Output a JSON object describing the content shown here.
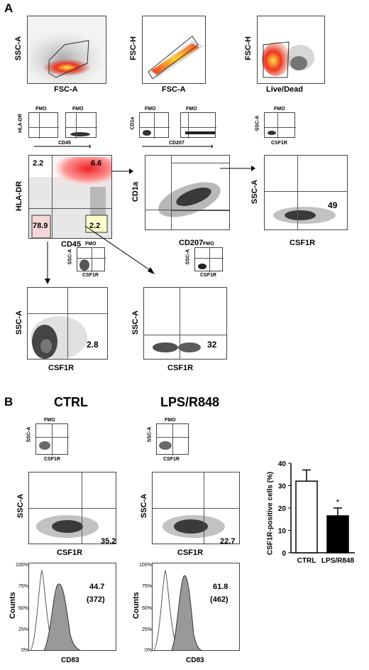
{
  "panel_a": {
    "letter": "A",
    "row1": [
      {
        "x_label": "FSC-A",
        "y_label": "SSC-A"
      },
      {
        "x_label": "FSC-A",
        "y_label": "FSC-H"
      },
      {
        "x_label": "Live/Dead",
        "y_label": "FSC-H"
      }
    ],
    "fmo_label": "FMO",
    "fmo_hla": {
      "y_label": "HLA-DR",
      "x_label": "CD45"
    },
    "fmo_cd1a": {
      "y_label": "CD1a",
      "x_label": "CD207"
    },
    "fmo_ssc": {
      "y_label": "SSC-A",
      "x_label": "CSF1R"
    },
    "hla_plot": {
      "y_label": "HLA-DR",
      "x_label": "CD45",
      "q_tl": "2.2",
      "q_tr": "6.6",
      "q_bl": "78.9",
      "q_br": "2.2"
    },
    "cd1a_plot": {
      "y_label": "CD1a",
      "x_label": "CD207"
    },
    "csf1r_main": {
      "y_label": "SSC-A",
      "x_label": "CSF1R",
      "value": "49"
    },
    "lower_left": {
      "y_label": "SSC-A",
      "x_label": "CSF1R",
      "value": "2.8"
    },
    "lower_right": {
      "y_label": "SSC-A",
      "x_label": "CSF1R",
      "value": "32"
    }
  },
  "panel_b": {
    "letter": "B",
    "ctrl": {
      "title": "CTRL",
      "ssc_value": "35.2",
      "hist_pct": "44.7",
      "hist_mfi": "(372)"
    },
    "lps": {
      "title": "LPS/R848",
      "ssc_value": "22.7",
      "hist_pct": "61.8",
      "hist_mfi": "(462)"
    },
    "ssc_label": "SSC-A",
    "csf1r_label": "CSF1R",
    "counts_label": "Counts",
    "cd83_label": "CD83",
    "hist_ticks": [
      "100%",
      "75%",
      "50%",
      "25%",
      "0%"
    ]
  },
  "chart_data": {
    "type": "bar",
    "categories": [
      "CTRL",
      "LPS/R848"
    ],
    "values": [
      32,
      16.5
    ],
    "errors": [
      5,
      3.5
    ],
    "ylabel": "CSF1R-positive cells (%)",
    "ylim": [
      0,
      40
    ],
    "yticks": [
      "0",
      "10",
      "20",
      "30",
      "40"
    ],
    "significance": "*",
    "colors": [
      "#ffffff",
      "#000000"
    ]
  }
}
